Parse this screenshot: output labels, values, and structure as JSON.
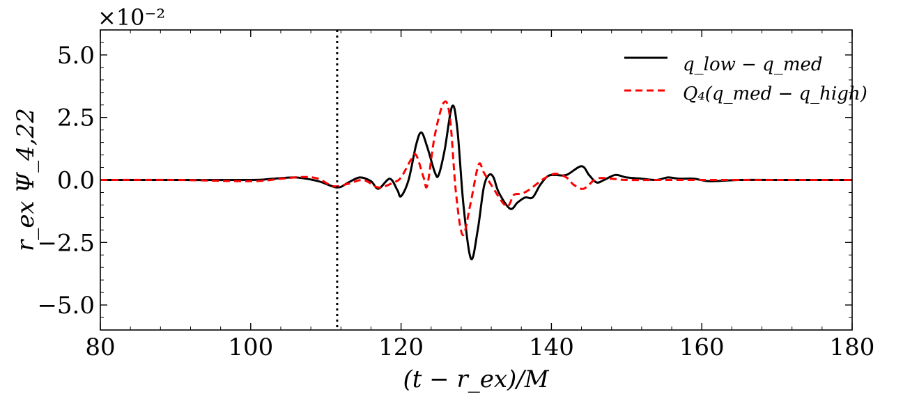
{
  "chart_data": {
    "type": "line",
    "xlabel": "(t − r_ex)/M",
    "ylabel": "r_ex Ψ_4,22",
    "y_multiplier": "×10⁻²",
    "xlim": [
      80,
      180
    ],
    "ylim": [
      -6,
      6
    ],
    "xticks": [
      80,
      100,
      120,
      140,
      160,
      180
    ],
    "xtick_labels": [
      "80",
      "100",
      "120",
      "140",
      "160",
      "180"
    ],
    "yticks": [
      -5,
      -2.5,
      0,
      2.5,
      5
    ],
    "ytick_labels": [
      "−5.0",
      "−2.5",
      "0.0",
      "2.5",
      "5.0"
    ],
    "grid": false,
    "legend_position": "top-right",
    "vline": {
      "x": 111.5,
      "style": "dotted",
      "color": "#000000"
    },
    "series": [
      {
        "name": "q_low − q_med",
        "color": "#000000",
        "style": "solid",
        "points": [
          [
            80,
            0
          ],
          [
            90,
            0
          ],
          [
            100,
            0
          ],
          [
            103,
            0.05
          ],
          [
            106,
            0.1
          ],
          [
            109,
            -0.05
          ],
          [
            111.5,
            -0.3
          ],
          [
            113,
            -0.1
          ],
          [
            114.5,
            0.1
          ],
          [
            116,
            -0.05
          ],
          [
            117,
            -0.35
          ],
          [
            118.5,
            0.05
          ],
          [
            119.5,
            -0.4
          ],
          [
            120,
            -0.65
          ],
          [
            121,
            0
          ],
          [
            122,
            1.4
          ],
          [
            122.7,
            1.9
          ],
          [
            123.5,
            1.3
          ],
          [
            124.5,
            0.3
          ],
          [
            125,
            0.2
          ],
          [
            125.8,
            1.2
          ],
          [
            126.8,
            2.95
          ],
          [
            127.5,
            2.0
          ],
          [
            128.3,
            -1.0
          ],
          [
            129.3,
            -3.15
          ],
          [
            130.2,
            -2.0
          ],
          [
            131,
            -0.3
          ],
          [
            131.7,
            0.2
          ],
          [
            132.3,
            0.1
          ],
          [
            133,
            -0.5
          ],
          [
            134.5,
            -1.15
          ],
          [
            135.5,
            -0.9
          ],
          [
            136.5,
            -0.7
          ],
          [
            137.5,
            -0.7
          ],
          [
            138.5,
            -0.2
          ],
          [
            139.5,
            0.15
          ],
          [
            140.5,
            0.2
          ],
          [
            142,
            0.2
          ],
          [
            144,
            0.55
          ],
          [
            145,
            0.2
          ],
          [
            146,
            -0.1
          ],
          [
            147,
            0
          ],
          [
            148.5,
            0.2
          ],
          [
            150,
            0.1
          ],
          [
            152,
            0.05
          ],
          [
            154,
            0
          ],
          [
            155.5,
            0.1
          ],
          [
            157,
            0.05
          ],
          [
            159,
            0.05
          ],
          [
            161,
            -0.05
          ],
          [
            165,
            0
          ],
          [
            170,
            0
          ],
          [
            180,
            0
          ]
        ]
      },
      {
        "name": "Q₄(q_med − q_high)",
        "color": "#ff0000",
        "style": "dashed",
        "points": [
          [
            80,
            0
          ],
          [
            90,
            0
          ],
          [
            100,
            -0.05
          ],
          [
            104,
            0.05
          ],
          [
            107,
            0.12
          ],
          [
            109,
            0.05
          ],
          [
            111,
            -0.25
          ],
          [
            113,
            -0.15
          ],
          [
            115,
            0
          ],
          [
            117,
            -0.3
          ],
          [
            119,
            -0.1
          ],
          [
            120,
            0.1
          ],
          [
            121.3,
            0.8
          ],
          [
            122,
            1.0
          ],
          [
            123,
            0.1
          ],
          [
            123.5,
            -0.2
          ],
          [
            124.5,
            1.8
          ],
          [
            125.7,
            3.1
          ],
          [
            126.5,
            2.5
          ],
          [
            127.3,
            -0.5
          ],
          [
            128.2,
            -2.2
          ],
          [
            129.2,
            -1.0
          ],
          [
            130.3,
            0.6
          ],
          [
            131,
            0.3
          ],
          [
            132,
            -0.2
          ],
          [
            134,
            -1.05
          ],
          [
            135,
            -0.6
          ],
          [
            136,
            -0.55
          ],
          [
            137,
            -0.4
          ],
          [
            139,
            0.05
          ],
          [
            140.5,
            0.25
          ],
          [
            142,
            0.1
          ],
          [
            143,
            -0.2
          ],
          [
            144.3,
            -0.35
          ],
          [
            146,
            0.05
          ],
          [
            148,
            0.05
          ],
          [
            150,
            0
          ],
          [
            155,
            0
          ],
          [
            160,
            0
          ],
          [
            170,
            0
          ],
          [
            180,
            0
          ]
        ]
      }
    ]
  }
}
